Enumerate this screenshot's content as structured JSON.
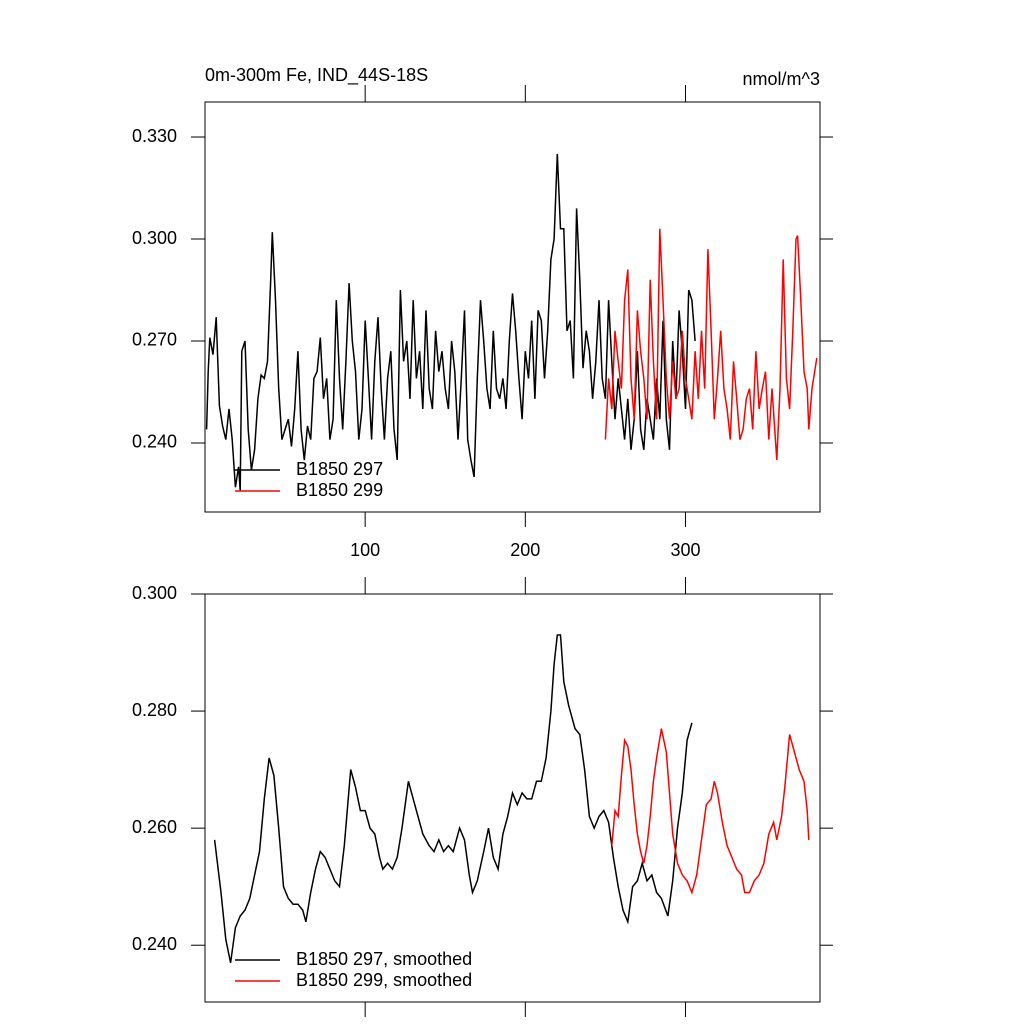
{
  "chart_data": [
    {
      "type": "line",
      "title": "0m-300m Fe, IND_44S-18S",
      "units": "nmol/m^3",
      "xlim": [
        0,
        384
      ],
      "xticks": [
        100,
        200,
        300
      ],
      "xtick_labels": true,
      "ylim": [
        0.2197,
        0.3403
      ],
      "yticks": [
        {
          "value": 0.24,
          "label": "0.240"
        },
        {
          "value": 0.27,
          "label": "0.270"
        },
        {
          "value": 0.3,
          "label": "0.300"
        },
        {
          "value": 0.33,
          "label": "0.330"
        }
      ],
      "legend": "lower left",
      "series": [
        {
          "name": "B1850 297",
          "color": "#000000",
          "x": [
            1,
            2,
            3,
            5,
            7,
            9,
            11,
            13,
            15,
            17,
            19,
            21,
            22,
            23,
            25,
            27,
            29,
            31,
            33,
            35,
            37,
            39,
            41,
            42,
            44,
            46,
            48,
            50,
            52,
            54,
            56,
            58,
            60,
            62,
            64,
            66,
            68,
            70,
            72,
            74,
            76,
            78,
            80,
            82,
            84,
            86,
            88,
            90,
            92,
            94,
            96,
            98,
            100,
            102,
            104,
            106,
            108,
            110,
            112,
            114,
            116,
            118,
            120,
            122,
            124,
            126,
            128,
            130,
            132,
            134,
            136,
            138,
            140,
            142,
            144,
            146,
            148,
            150,
            152,
            154,
            156,
            158,
            160,
            162,
            164,
            166,
            168,
            170,
            172,
            174,
            176,
            178,
            180,
            182,
            184,
            186,
            188,
            190,
            192,
            194,
            196,
            198,
            200,
            202,
            204,
            206,
            208,
            210,
            212,
            214,
            216,
            218,
            220,
            222,
            224,
            226,
            228,
            230,
            232,
            234,
            236,
            238,
            240,
            242,
            244,
            246,
            248,
            250,
            252,
            254,
            256,
            258,
            260,
            262,
            264,
            266,
            268,
            270,
            272,
            274,
            276,
            278,
            280,
            282,
            284,
            286,
            288,
            290,
            292,
            294,
            296,
            298,
            300,
            302,
            304,
            306
          ],
          "values": [
            0.244,
            0.261,
            0.271,
            0.266,
            0.277,
            0.251,
            0.245,
            0.241,
            0.25,
            0.241,
            0.227,
            0.233,
            0.226,
            0.267,
            0.27,
            0.244,
            0.232,
            0.238,
            0.253,
            0.26,
            0.259,
            0.264,
            0.288,
            0.302,
            0.282,
            0.256,
            0.241,
            0.244,
            0.247,
            0.239,
            0.25,
            0.267,
            0.244,
            0.235,
            0.245,
            0.241,
            0.259,
            0.261,
            0.271,
            0.253,
            0.259,
            0.241,
            0.247,
            0.282,
            0.259,
            0.244,
            0.264,
            0.287,
            0.27,
            0.261,
            0.241,
            0.25,
            0.276,
            0.259,
            0.241,
            0.264,
            0.277,
            0.256,
            0.241,
            0.259,
            0.267,
            0.244,
            0.235,
            0.285,
            0.264,
            0.27,
            0.253,
            0.282,
            0.259,
            0.267,
            0.25,
            0.279,
            0.256,
            0.25,
            0.273,
            0.261,
            0.267,
            0.256,
            0.25,
            0.27,
            0.261,
            0.241,
            0.259,
            0.279,
            0.241,
            0.235,
            0.23,
            0.259,
            0.282,
            0.27,
            0.256,
            0.25,
            0.273,
            0.256,
            0.253,
            0.259,
            0.25,
            0.27,
            0.284,
            0.273,
            0.259,
            0.247,
            0.267,
            0.259,
            0.276,
            0.253,
            0.279,
            0.276,
            0.259,
            0.273,
            0.294,
            0.3,
            0.325,
            0.303,
            0.303,
            0.273,
            0.276,
            0.259,
            0.309,
            0.288,
            0.262,
            0.273,
            0.267,
            0.253,
            0.264,
            0.282,
            0.259,
            0.253,
            0.282,
            0.264,
            0.247,
            0.259,
            0.25,
            0.241,
            0.253,
            0.238,
            0.247,
            0.267,
            0.244,
            0.238,
            0.253,
            0.247,
            0.241,
            0.259,
            0.247,
            0.276,
            0.247,
            0.238,
            0.27,
            0.253,
            0.279,
            0.267,
            0.25,
            0.285,
            0.282,
            0.27
          ]
        },
        {
          "name": "B1850 299",
          "color": "#ff0000",
          "x": [
            250,
            252,
            254,
            256,
            258,
            260,
            262,
            264,
            266,
            268,
            270,
            272,
            274,
            276,
            278,
            280,
            282,
            284,
            286,
            288,
            290,
            292,
            294,
            296,
            298,
            300,
            302,
            304,
            306,
            308,
            310,
            312,
            314,
            316,
            318,
            320,
            322,
            324,
            326,
            328,
            330,
            332,
            334,
            336,
            338,
            340,
            342,
            344,
            346,
            348,
            350,
            352,
            354,
            357,
            359,
            361,
            363,
            365,
            367,
            369,
            370,
            372,
            374,
            376,
            377,
            379,
            382
          ],
          "values": [
            0.241,
            0.259,
            0.25,
            0.273,
            0.264,
            0.256,
            0.282,
            0.291,
            0.259,
            0.247,
            0.279,
            0.267,
            0.259,
            0.247,
            0.288,
            0.264,
            0.247,
            0.303,
            0.282,
            0.259,
            0.247,
            0.264,
            0.253,
            0.256,
            0.273,
            0.259,
            0.253,
            0.247,
            0.267,
            0.253,
            0.273,
            0.256,
            0.297,
            0.273,
            0.247,
            0.259,
            0.273,
            0.256,
            0.25,
            0.241,
            0.264,
            0.253,
            0.241,
            0.244,
            0.253,
            0.256,
            0.244,
            0.267,
            0.25,
            0.256,
            0.261,
            0.241,
            0.256,
            0.235,
            0.256,
            0.294,
            0.259,
            0.25,
            0.273,
            0.3,
            0.301,
            0.282,
            0.261,
            0.256,
            0.244,
            0.256,
            0.265
          ]
        }
      ]
    },
    {
      "type": "line",
      "xlim": [
        0,
        384
      ],
      "xticks": [
        100,
        200,
        300
      ],
      "xtick_labels": false,
      "ylim": [
        0.2303,
        0.3
      ],
      "yticks": [
        {
          "value": 0.24,
          "label": "0.240"
        },
        {
          "value": 0.26,
          "label": "0.260"
        },
        {
          "value": 0.28,
          "label": "0.280"
        },
        {
          "value": 0.3,
          "label": "0.300"
        }
      ],
      "legend": "lower left",
      "series": [
        {
          "name": "B1850 297, smoothed",
          "color": "#000000",
          "x": [
            6,
            10,
            13,
            16,
            19,
            22,
            25,
            28,
            31,
            34,
            37,
            40,
            43,
            46,
            49,
            52,
            55,
            58,
            61,
            63,
            66,
            69,
            72,
            75,
            78,
            81,
            84,
            87,
            91,
            94,
            97,
            100,
            103,
            106,
            109,
            111,
            114,
            117,
            120,
            123,
            127,
            130,
            133,
            136,
            140,
            143,
            146,
            149,
            152,
            155,
            159,
            162,
            165,
            167,
            170,
            174,
            177,
            180,
            183,
            186,
            189,
            192,
            195,
            198,
            201,
            204,
            207,
            210,
            213,
            216,
            218,
            220,
            222,
            224,
            227,
            231,
            234,
            237,
            240,
            243,
            246,
            249,
            252,
            255,
            258,
            261,
            264,
            267,
            270,
            273,
            276,
            279,
            282,
            285,
            289,
            292,
            295,
            298,
            301,
            304
          ],
          "values": [
            0.258,
            0.249,
            0.241,
            0.237,
            0.243,
            0.245,
            0.246,
            0.248,
            0.252,
            0.256,
            0.265,
            0.272,
            0.269,
            0.26,
            0.25,
            0.248,
            0.247,
            0.247,
            0.246,
            0.244,
            0.249,
            0.253,
            0.256,
            0.255,
            0.253,
            0.251,
            0.25,
            0.257,
            0.27,
            0.267,
            0.263,
            0.263,
            0.26,
            0.259,
            0.255,
            0.253,
            0.254,
            0.253,
            0.255,
            0.26,
            0.268,
            0.265,
            0.262,
            0.259,
            0.257,
            0.256,
            0.258,
            0.256,
            0.257,
            0.256,
            0.26,
            0.258,
            0.252,
            0.249,
            0.251,
            0.256,
            0.26,
            0.255,
            0.253,
            0.259,
            0.262,
            0.266,
            0.264,
            0.266,
            0.265,
            0.265,
            0.268,
            0.268,
            0.272,
            0.28,
            0.288,
            0.293,
            0.293,
            0.285,
            0.281,
            0.277,
            0.276,
            0.27,
            0.262,
            0.26,
            0.262,
            0.263,
            0.261,
            0.255,
            0.25,
            0.246,
            0.244,
            0.25,
            0.251,
            0.254,
            0.251,
            0.252,
            0.249,
            0.248,
            0.245,
            0.251,
            0.26,
            0.266,
            0.275,
            0.278
          ]
        },
        {
          "name": "B1850 299, smoothed",
          "color": "#ff0000",
          "x": [
            254,
            256,
            258,
            260,
            262,
            264,
            266,
            268,
            270,
            272,
            274,
            276,
            278,
            280,
            282,
            285,
            288,
            290,
            292,
            295,
            298,
            301,
            304,
            307,
            310,
            313,
            316,
            318,
            320,
            323,
            326,
            329,
            332,
            335,
            337,
            340,
            343,
            346,
            349,
            352,
            355,
            357,
            360,
            362,
            365,
            368,
            371,
            374,
            376,
            377
          ],
          "values": [
            0.257,
            0.263,
            0.262,
            0.269,
            0.275,
            0.274,
            0.27,
            0.264,
            0.259,
            0.256,
            0.254,
            0.257,
            0.262,
            0.268,
            0.272,
            0.277,
            0.273,
            0.266,
            0.259,
            0.254,
            0.252,
            0.251,
            0.249,
            0.252,
            0.258,
            0.264,
            0.265,
            0.268,
            0.266,
            0.261,
            0.257,
            0.255,
            0.253,
            0.252,
            0.249,
            0.249,
            0.251,
            0.252,
            0.254,
            0.259,
            0.261,
            0.258,
            0.262,
            0.267,
            0.276,
            0.273,
            0.27,
            0.268,
            0.263,
            0.258
          ]
        }
      ]
    }
  ]
}
